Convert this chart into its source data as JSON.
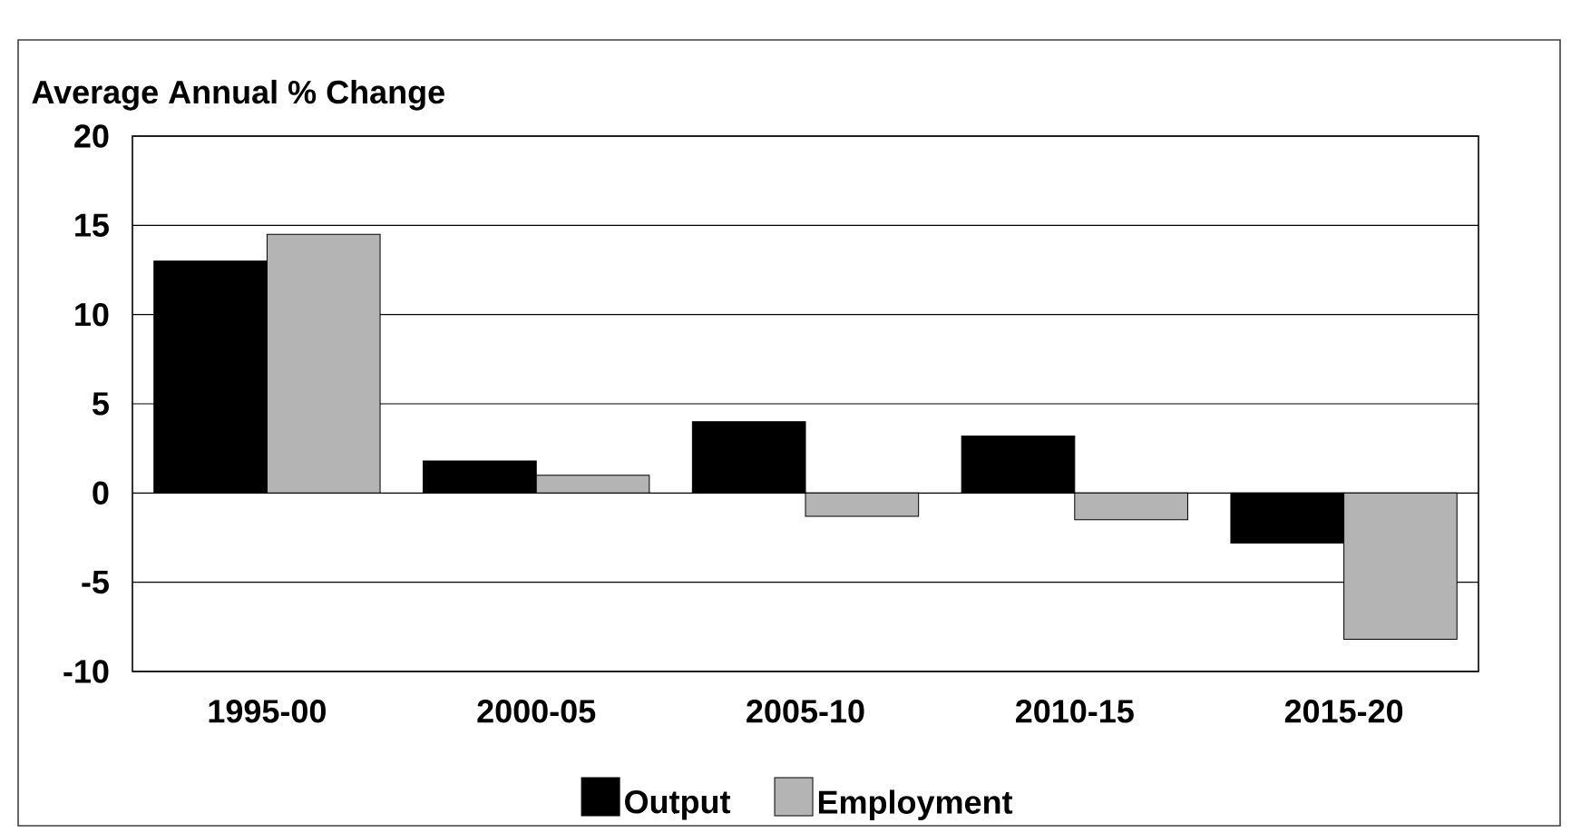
{
  "chart_data": {
    "type": "bar",
    "ylabel": "Average Annual % Change",
    "categories": [
      "1995-00",
      "2000-05",
      "2005-10",
      "2010-15",
      "2015-20"
    ],
    "series": [
      {
        "name": "Output",
        "color": "#000000",
        "values": [
          13.0,
          1.8,
          4.0,
          3.2,
          -2.8
        ]
      },
      {
        "name": "Employment",
        "color": "#b4b4b4",
        "values": [
          14.5,
          1.0,
          -1.3,
          -1.5,
          -8.2
        ]
      }
    ],
    "ylim": [
      -10,
      20
    ],
    "yticks": [
      -10,
      -5,
      0,
      5,
      10,
      15,
      20
    ],
    "grid": "y",
    "legend": "bottom"
  }
}
